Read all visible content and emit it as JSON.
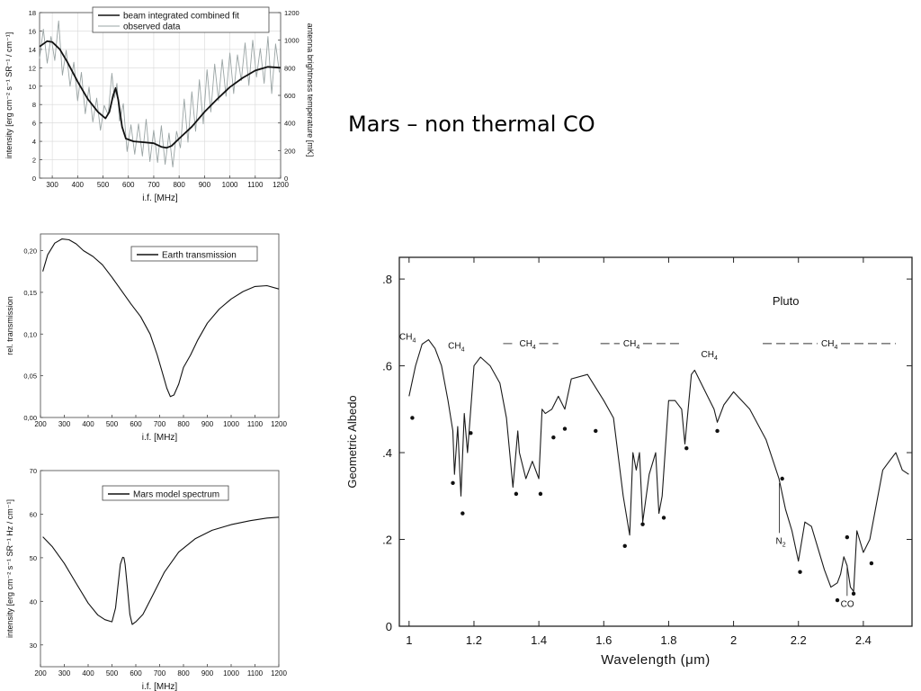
{
  "slide": {
    "title": "Mars – non thermal CO"
  },
  "colors": {
    "fit": "#111111",
    "observed": "#9aa4a4",
    "line": "#111111",
    "grid": "#d8d8d8",
    "axis": "#444444"
  },
  "chart_data": [
    {
      "type": "line",
      "xlabel": "i.f. [MHz]",
      "ylabel": "intensity [erg cm⁻² s⁻¹ SR⁻¹ / cm⁻¹]",
      "y2label": "antenna brightness temperature [mK]",
      "xlim": [
        250,
        1200
      ],
      "ylim": [
        0,
        18
      ],
      "y2lim": [
        0,
        1200
      ],
      "grid": true,
      "legend_position": "top-right",
      "xticks": [
        300,
        400,
        500,
        600,
        700,
        800,
        900,
        1000,
        1100,
        1200
      ],
      "yticks": [
        0,
        2,
        4,
        6,
        8,
        10,
        12,
        14,
        16,
        18
      ],
      "y2ticks": [
        0,
        200,
        400,
        600,
        800,
        1000,
        1200
      ],
      "series": [
        {
          "name": "beam integrated combined fit",
          "style": "fit",
          "x": [
            250,
            280,
            300,
            330,
            360,
            400,
            440,
            480,
            510,
            525,
            540,
            550,
            560,
            575,
            590,
            620,
            660,
            700,
            730,
            750,
            770,
            800,
            850,
            900,
            950,
            1000,
            1050,
            1100,
            1150,
            1200
          ],
          "y": [
            14.3,
            14.9,
            14.8,
            14.0,
            12.6,
            10.5,
            8.6,
            7.2,
            6.5,
            7.2,
            9.0,
            9.8,
            8.5,
            5.6,
            4.3,
            4.0,
            3.9,
            3.8,
            3.4,
            3.3,
            3.5,
            4.3,
            5.6,
            7.2,
            8.6,
            9.9,
            10.9,
            11.7,
            12.1,
            12.0
          ]
        },
        {
          "name": "observed data",
          "style": "observed",
          "x": [
            250,
            265,
            280,
            295,
            310,
            325,
            340,
            355,
            370,
            385,
            400,
            415,
            430,
            445,
            460,
            475,
            490,
            505,
            520,
            535,
            545,
            555,
            565,
            580,
            595,
            610,
            625,
            640,
            655,
            670,
            685,
            700,
            715,
            730,
            745,
            760,
            775,
            790,
            805,
            820,
            835,
            850,
            865,
            880,
            895,
            910,
            925,
            940,
            955,
            970,
            985,
            1000,
            1015,
            1030,
            1045,
            1060,
            1075,
            1090,
            1105,
            1120,
            1135,
            1150,
            1165,
            1180,
            1195
          ],
          "y": [
            13.0,
            16.2,
            12.5,
            15.4,
            12.8,
            17.1,
            11.2,
            13.9,
            10.0,
            12.6,
            8.4,
            11.5,
            7.0,
            9.9,
            6.1,
            8.7,
            5.2,
            7.9,
            6.9,
            11.4,
            8.7,
            10.3,
            6.2,
            8.1,
            2.9,
            5.8,
            2.6,
            5.9,
            2.4,
            6.4,
            1.8,
            5.2,
            1.7,
            5.7,
            1.5,
            4.9,
            1.2,
            5.1,
            3.3,
            8.6,
            3.9,
            9.4,
            5.1,
            10.7,
            5.9,
            11.8,
            7.2,
            12.4,
            8.4,
            12.9,
            8.9,
            13.6,
            9.2,
            13.4,
            10.6,
            14.7,
            10.1,
            15.0,
            11.0,
            14.1,
            10.3,
            15.4,
            9.2,
            14.6,
            11.5
          ]
        }
      ]
    },
    {
      "type": "line",
      "xlabel": "i.f. [MHz]",
      "ylabel": "rel. transmission",
      "xlim": [
        200,
        1200
      ],
      "ylim": [
        0,
        0.22
      ],
      "grid": false,
      "legend_position": "top-right",
      "xticks": [
        200,
        300,
        400,
        500,
        600,
        700,
        800,
        900,
        1000,
        1100,
        1200
      ],
      "yticks": [
        0.0,
        0.05,
        0.1,
        0.15,
        0.2
      ],
      "ytick_labels": [
        "0,00",
        "0,05",
        "0,10",
        "0,15",
        "0,20"
      ],
      "series": [
        {
          "name": "Earth transmission",
          "x": [
            210,
            230,
            260,
            290,
            320,
            350,
            380,
            420,
            460,
            500,
            540,
            580,
            620,
            660,
            690,
            710,
            730,
            745,
            760,
            780,
            800,
            830,
            860,
            900,
            950,
            1000,
            1050,
            1100,
            1150,
            1200
          ],
          "y": [
            0.175,
            0.195,
            0.209,
            0.214,
            0.213,
            0.208,
            0.2,
            0.193,
            0.183,
            0.168,
            0.152,
            0.136,
            0.121,
            0.1,
            0.075,
            0.055,
            0.035,
            0.025,
            0.027,
            0.04,
            0.06,
            0.075,
            0.093,
            0.113,
            0.13,
            0.142,
            0.151,
            0.157,
            0.158,
            0.154
          ]
        }
      ]
    },
    {
      "type": "line",
      "xlabel": "i.f. [MHz]",
      "ylabel": "intensity [erg cm⁻² s⁻¹ SR⁻¹ Hz / cm⁻¹]",
      "xlim": [
        200,
        1200
      ],
      "ylim": [
        25,
        70
      ],
      "grid": false,
      "legend_position": "top-right",
      "xticks": [
        200,
        300,
        400,
        500,
        600,
        700,
        800,
        900,
        1000,
        1100,
        1200
      ],
      "yticks": [
        30,
        40,
        50,
        60,
        70
      ],
      "series": [
        {
          "name": "Mars model spectrum",
          "x": [
            210,
            250,
            300,
            350,
            400,
            440,
            470,
            500,
            515,
            525,
            535,
            545,
            550,
            555,
            565,
            575,
            585,
            600,
            630,
            670,
            720,
            780,
            850,
            920,
            1000,
            1080,
            1150,
            1200
          ],
          "y": [
            54.8,
            52.5,
            48.7,
            44.1,
            39.6,
            36.9,
            35.8,
            35.3,
            38.5,
            43.5,
            48.5,
            50.1,
            50.0,
            48.5,
            43.0,
            37.0,
            34.7,
            35.3,
            37.0,
            41.3,
            46.7,
            51.3,
            54.4,
            56.3,
            57.6,
            58.5,
            59.1,
            59.3
          ]
        }
      ]
    },
    {
      "type": "line",
      "title": "Pluto",
      "xlabel": "Wavelength (μm)",
      "ylabel": "Geometric Albedo",
      "xlim": [
        0.97,
        2.55
      ],
      "ylim": [
        0,
        0.85
      ],
      "grid": false,
      "xticks": [
        1,
        1.2,
        1.4,
        1.6,
        1.8,
        2,
        2.2,
        2.4
      ],
      "xtick_labels": [
        "1",
        "1.2",
        "1.4",
        "1.6",
        "1.8",
        "2",
        "2.2",
        "2.4"
      ],
      "yticks": [
        0,
        0.2,
        0.4,
        0.6,
        0.8
      ],
      "ytick_labels": [
        "0",
        ".2",
        ".4",
        ".6",
        ".8"
      ],
      "series": [
        {
          "name": "",
          "x": [
            1.0,
            1.02,
            1.04,
            1.06,
            1.08,
            1.1,
            1.12,
            1.135,
            1.14,
            1.15,
            1.16,
            1.17,
            1.18,
            1.19,
            1.2,
            1.22,
            1.25,
            1.28,
            1.3,
            1.32,
            1.335,
            1.34,
            1.36,
            1.38,
            1.4,
            1.41,
            1.42,
            1.44,
            1.46,
            1.48,
            1.5,
            1.55,
            1.6,
            1.63,
            1.66,
            1.68,
            1.69,
            1.7,
            1.71,
            1.72,
            1.74,
            1.76,
            1.77,
            1.78,
            1.8,
            1.82,
            1.84,
            1.85,
            1.86,
            1.87,
            1.88,
            1.9,
            1.92,
            1.94,
            1.95,
            1.97,
            2.0,
            2.05,
            2.1,
            2.14,
            2.16,
            2.18,
            2.2,
            2.22,
            2.24,
            2.26,
            2.28,
            2.3,
            2.32,
            2.33,
            2.34,
            2.35,
            2.36,
            2.37,
            2.38,
            2.4,
            2.42,
            2.44,
            2.46,
            2.48,
            2.5,
            2.52,
            2.54
          ],
          "y": [
            0.53,
            0.6,
            0.65,
            0.66,
            0.64,
            0.6,
            0.52,
            0.45,
            0.35,
            0.46,
            0.3,
            0.49,
            0.4,
            0.5,
            0.6,
            0.62,
            0.6,
            0.56,
            0.48,
            0.32,
            0.45,
            0.4,
            0.34,
            0.38,
            0.34,
            0.5,
            0.49,
            0.5,
            0.53,
            0.5,
            0.57,
            0.58,
            0.52,
            0.48,
            0.3,
            0.21,
            0.4,
            0.36,
            0.4,
            0.24,
            0.35,
            0.4,
            0.26,
            0.3,
            0.52,
            0.52,
            0.5,
            0.42,
            0.5,
            0.58,
            0.59,
            0.56,
            0.53,
            0.5,
            0.47,
            0.51,
            0.54,
            0.5,
            0.43,
            0.34,
            0.27,
            0.22,
            0.15,
            0.24,
            0.23,
            0.18,
            0.13,
            0.09,
            0.1,
            0.12,
            0.16,
            0.14,
            0.09,
            0.08,
            0.22,
            0.17,
            0.2,
            0.28,
            0.36,
            0.38,
            0.4,
            0.36,
            0.35
          ]
        }
      ],
      "dots": {
        "x": [
          1.01,
          1.135,
          1.165,
          1.19,
          1.33,
          1.405,
          1.445,
          1.48,
          1.575,
          1.665,
          1.72,
          1.785,
          1.855,
          1.95,
          2.15,
          2.205,
          2.32,
          2.35,
          2.37,
          2.425
        ],
        "y": [
          0.48,
          0.33,
          0.26,
          0.445,
          0.305,
          0.305,
          0.435,
          0.455,
          0.45,
          0.185,
          0.235,
          0.25,
          0.41,
          0.45,
          0.34,
          0.125,
          0.06,
          0.205,
          0.075,
          0.145
        ]
      },
      "annotations": [
        {
          "text": "CH",
          "sub": "4",
          "x": 0.97,
          "y": 0.66,
          "style": "plain"
        },
        {
          "text": "CH",
          "sub": "4",
          "x": 1.12,
          "y": 0.64,
          "style": "plain"
        },
        {
          "text": "CH",
          "sub": "4",
          "x": 1.34,
          "y": 0.645,
          "style": "dashed",
          "span": [
            1.29,
            1.46
          ]
        },
        {
          "text": "CH",
          "sub": "4",
          "x": 1.66,
          "y": 0.645,
          "style": "dashed",
          "span": [
            1.59,
            1.84
          ]
        },
        {
          "text": "CH",
          "sub": "4",
          "x": 1.9,
          "y": 0.62,
          "style": "plain"
        },
        {
          "text": "CH",
          "sub": "4",
          "x": 2.27,
          "y": 0.645,
          "style": "dashed",
          "span": [
            2.09,
            2.5
          ]
        },
        {
          "text": "N",
          "sub": "2",
          "x": 2.13,
          "y": 0.19,
          "style": "marker"
        },
        {
          "text": "CO",
          "x": 2.33,
          "y": 0.045,
          "style": "marker"
        }
      ]
    }
  ]
}
